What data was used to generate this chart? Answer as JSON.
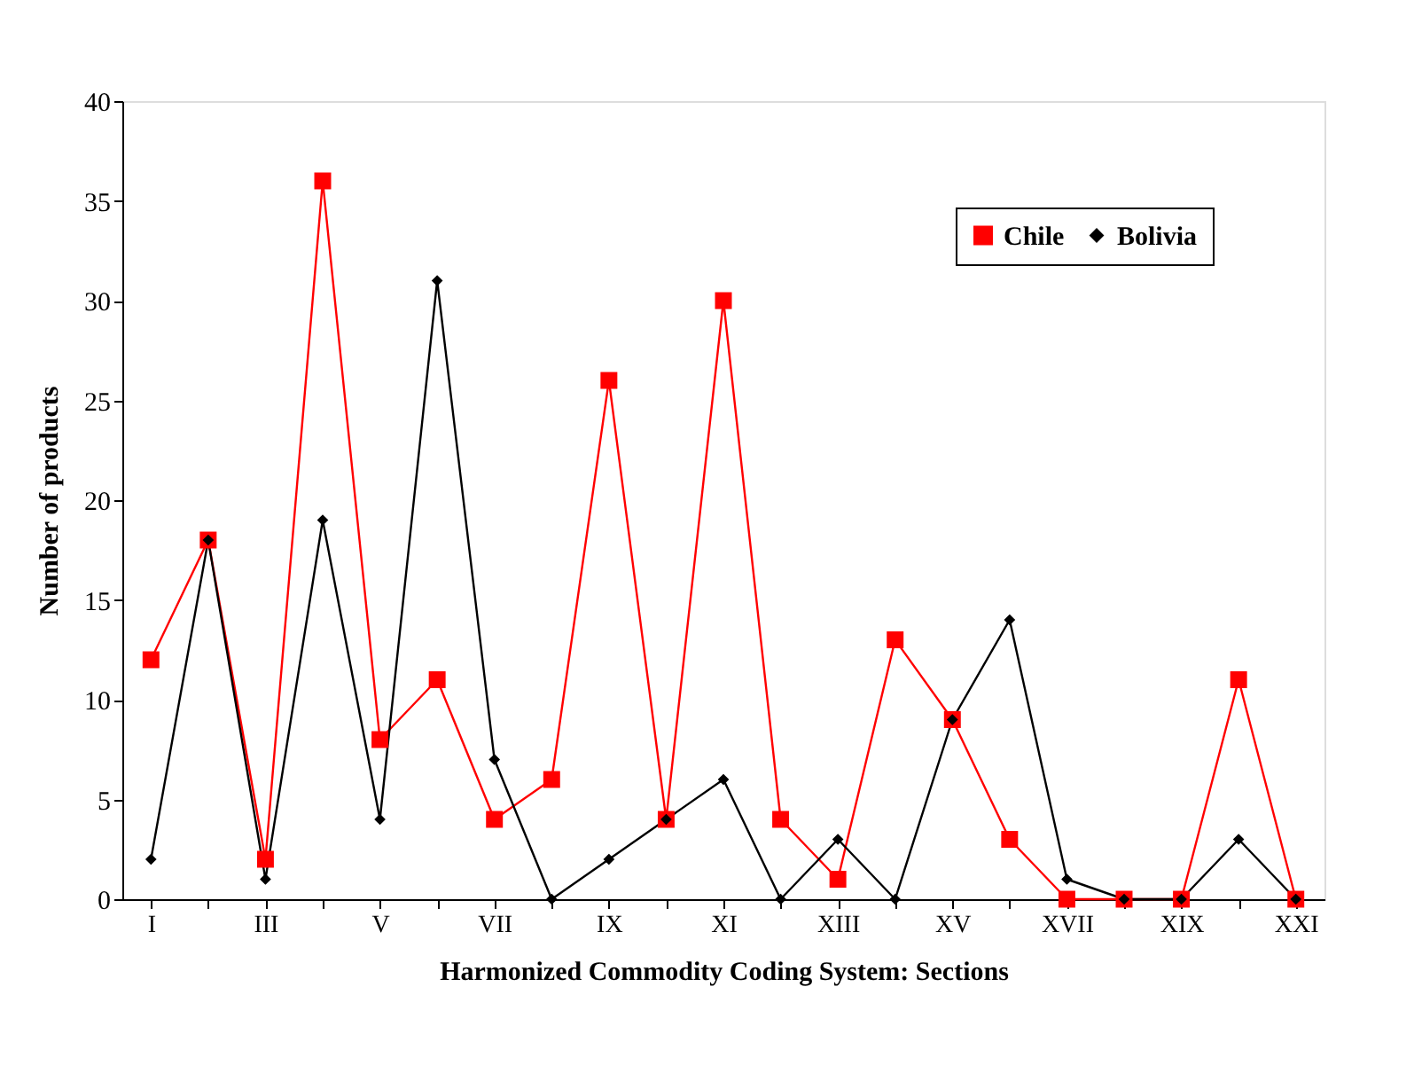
{
  "chart_data": {
    "type": "line",
    "xlabel": "Harmonized Commodity Coding System:  Sections",
    "ylabel": "Number of products",
    "categories": [
      "I",
      null,
      "III",
      null,
      "V",
      null,
      "VII",
      null,
      "IX",
      null,
      "XI",
      null,
      "XIII",
      null,
      "XV",
      null,
      "XVII",
      null,
      "XIX",
      null,
      "XXI"
    ],
    "series": [
      {
        "name": "Chile",
        "color": "#ff0000",
        "marker": "square",
        "values": [
          12,
          18,
          2,
          36,
          8,
          11,
          4,
          6,
          26,
          4,
          30,
          4,
          1,
          13,
          9,
          3,
          0,
          0,
          0,
          11,
          0
        ]
      },
      {
        "name": "Bolivia",
        "color": "#000000",
        "marker": "diamond",
        "values": [
          2,
          18,
          1,
          19,
          4,
          31,
          7,
          0,
          2,
          4,
          6,
          0,
          3,
          0,
          9,
          14,
          1,
          0,
          0,
          3,
          0
        ]
      }
    ],
    "ylim": [
      0,
      40
    ],
    "yticks": [
      0,
      5,
      10,
      15,
      20,
      25,
      30,
      35,
      40
    ],
    "grid": false,
    "legend": "top right",
    "line_style": "solid"
  }
}
